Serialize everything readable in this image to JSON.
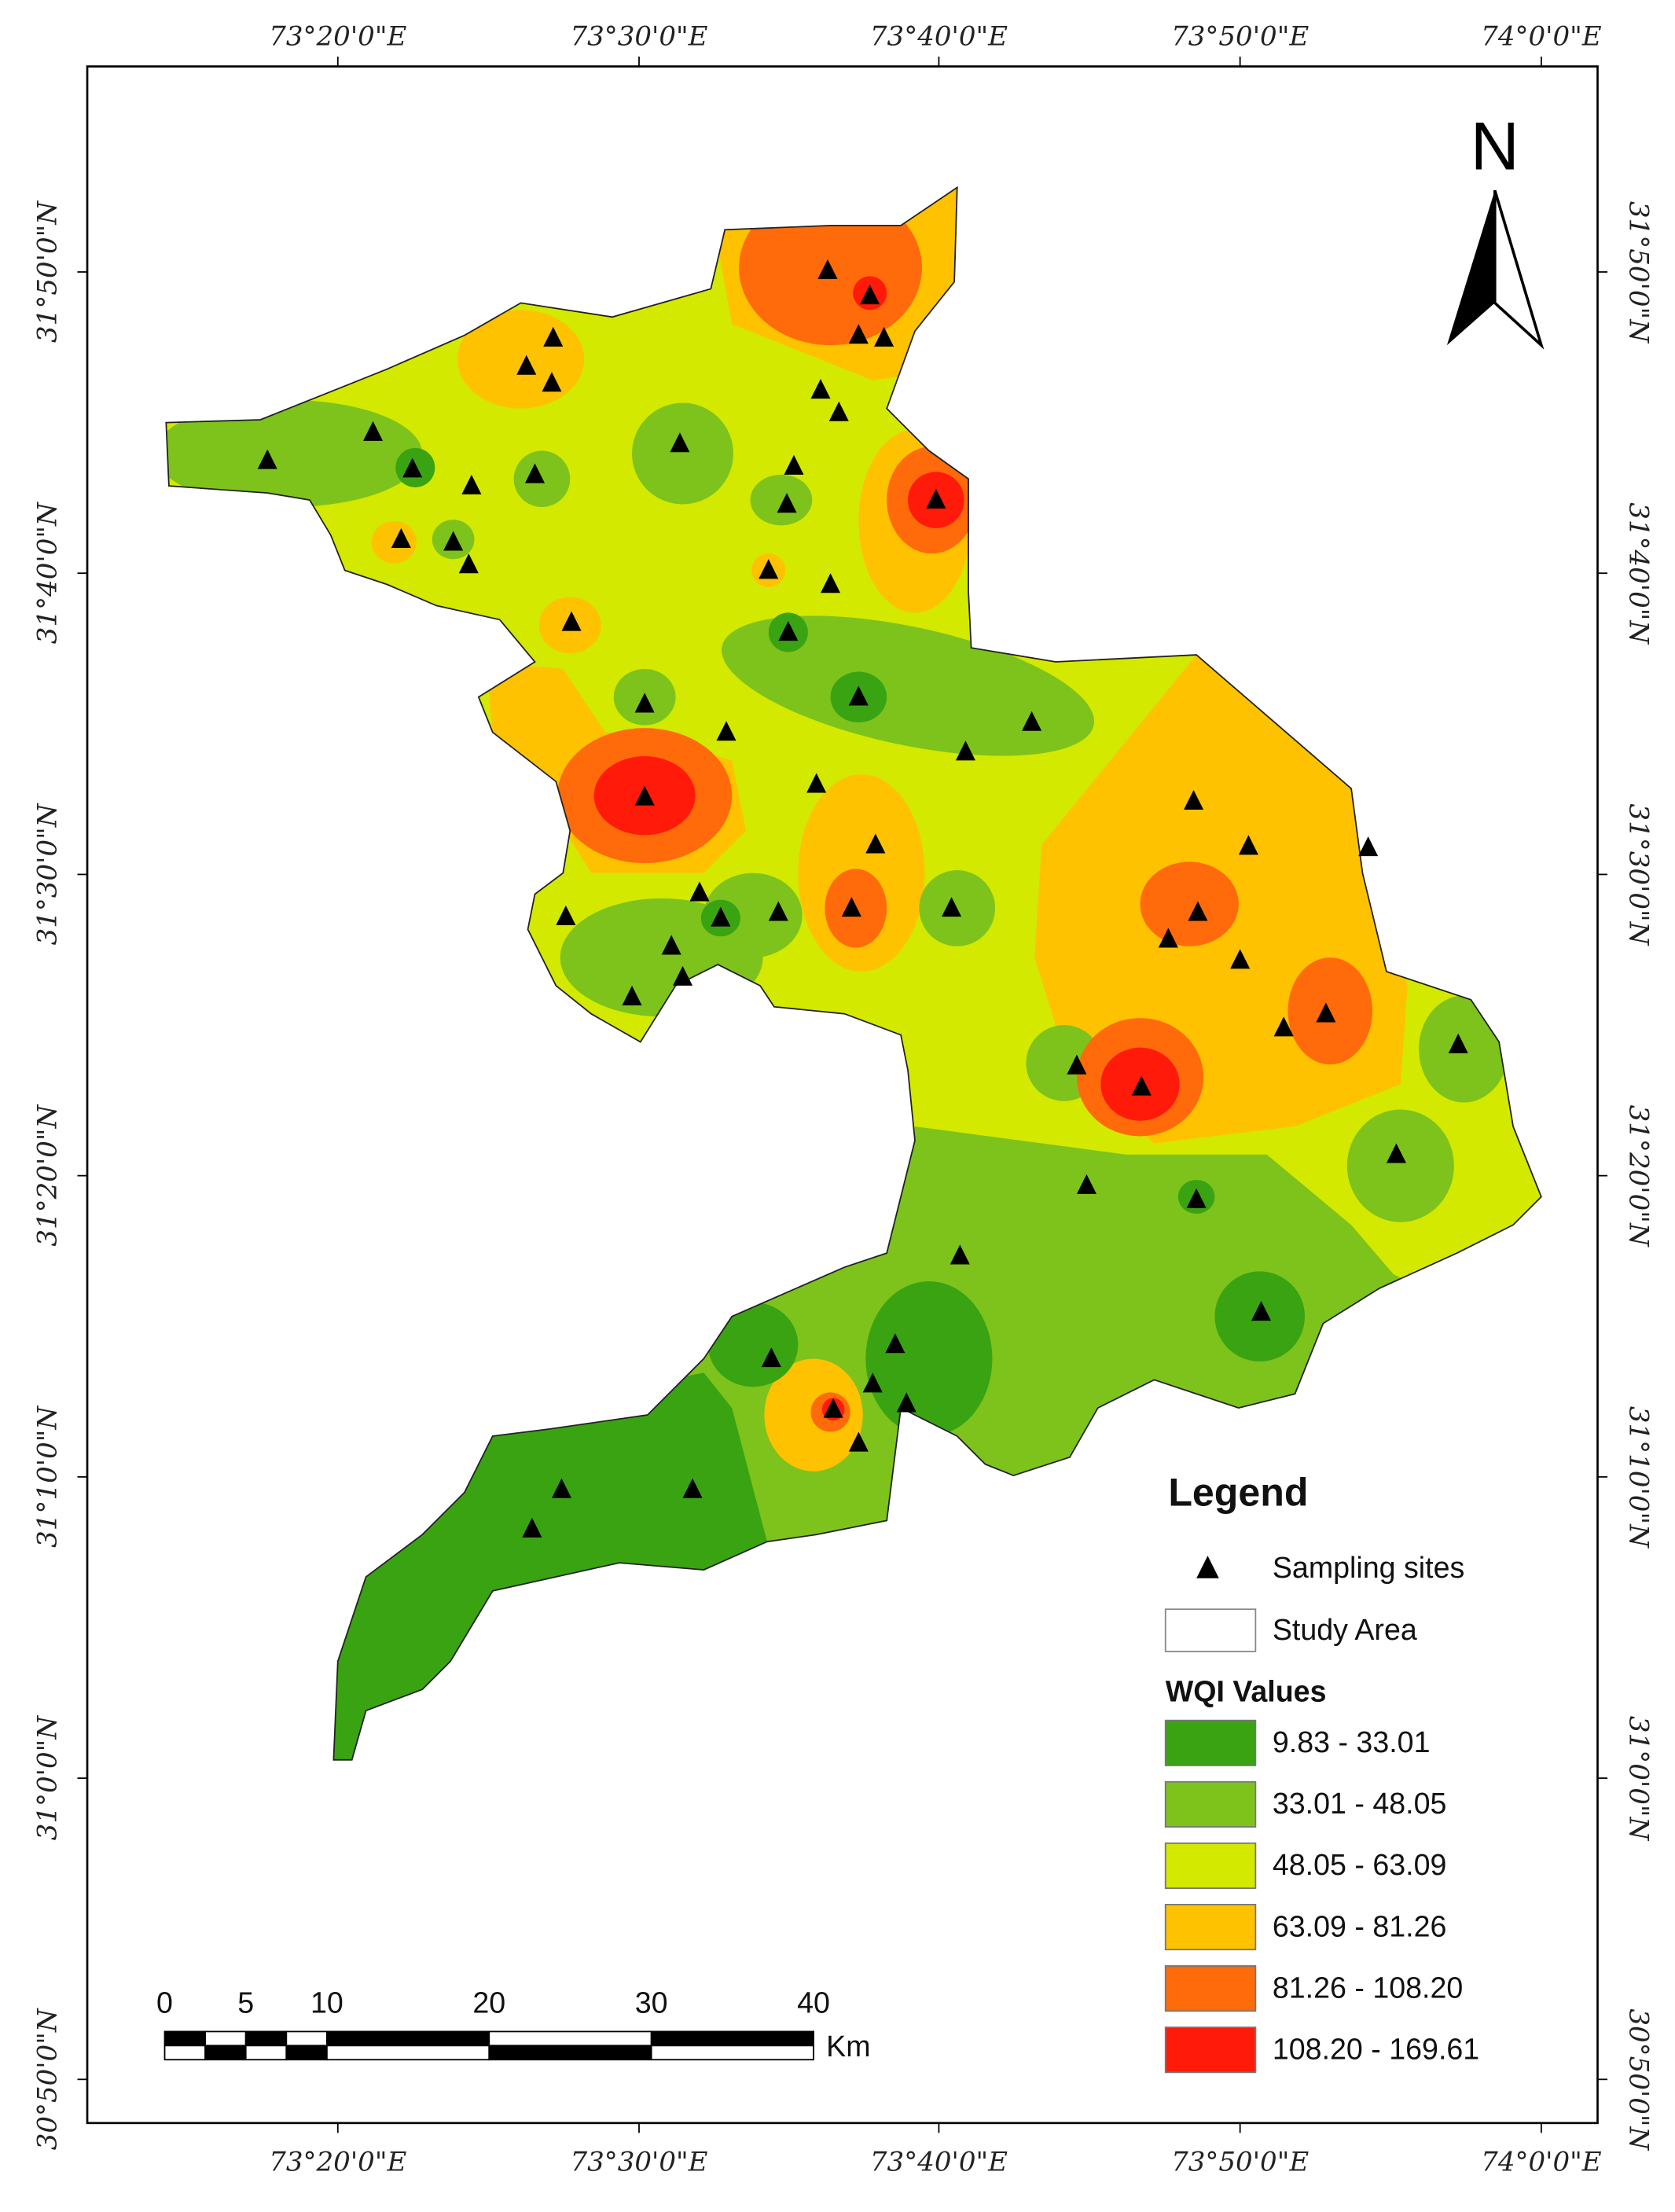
{
  "map": {
    "north_label": "N",
    "top_labels": [
      "73°20'0\"E",
      "73°30'0\"E",
      "73°40'0\"E",
      "73°50'0\"E",
      "74°0'0\"E"
    ],
    "bottom_labels": [
      "73°20'0\"E",
      "73°30'0\"E",
      "73°40'0\"E",
      "73°50'0\"E",
      "74°0'0\"E"
    ],
    "left_labels": [
      "31°50'0\"N",
      "31°40'0\"N",
      "31°30'0\"N",
      "31°20'0\"N",
      "31°10'0\"N",
      "31°0'0\"N",
      "30°50'0\"N"
    ],
    "right_labels": [
      "31°50'0\"N",
      "31°40'0\"N",
      "31°30'0\"N",
      "31°20'0\"N",
      "31°10'0\"N",
      "31°0'0\"N",
      "30°50'0\"N"
    ],
    "legend": {
      "title": "Legend",
      "sites": "Sampling sites",
      "study_area": "Study Area",
      "classes_title": "WQI Values",
      "classes": [
        {
          "label": "9.83 - 33.01",
          "color": "#3aa312"
        },
        {
          "label": "33.01 - 48.05",
          "color": "#7dc31c"
        },
        {
          "label": "48.05 - 63.09",
          "color": "#d3e900"
        },
        {
          "label": "63.09 - 81.26",
          "color": "#ffc200"
        },
        {
          "label": "81.26 - 108.20",
          "color": "#ff6a0a"
        },
        {
          "label": "108.20 - 169.61",
          "color": "#ff1a0a"
        }
      ]
    },
    "scale_bar": {
      "ticks": [
        0,
        5,
        10,
        20,
        30,
        40
      ],
      "unit": "Km"
    }
  }
}
